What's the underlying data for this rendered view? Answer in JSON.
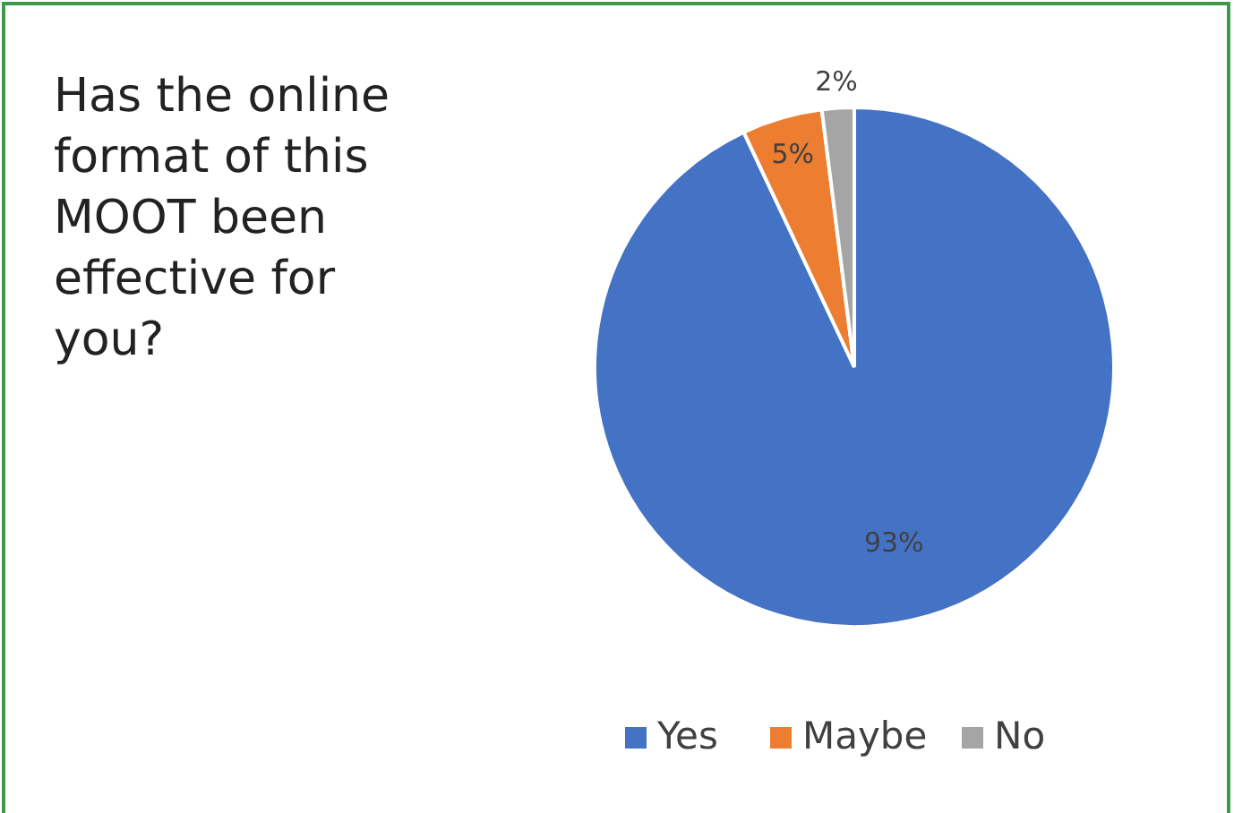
{
  "chart_data": {
    "type": "pie",
    "title": "Has the online format of this MOOT been effective for you?",
    "categories": [
      "Yes",
      "Maybe",
      "No"
    ],
    "values": [
      93,
      5,
      2
    ],
    "colors": [
      "#4472c4",
      "#ed7d31",
      "#a5a5a5"
    ],
    "value_labels": [
      "93%",
      "5%",
      "2%"
    ],
    "legend": "bottom"
  }
}
